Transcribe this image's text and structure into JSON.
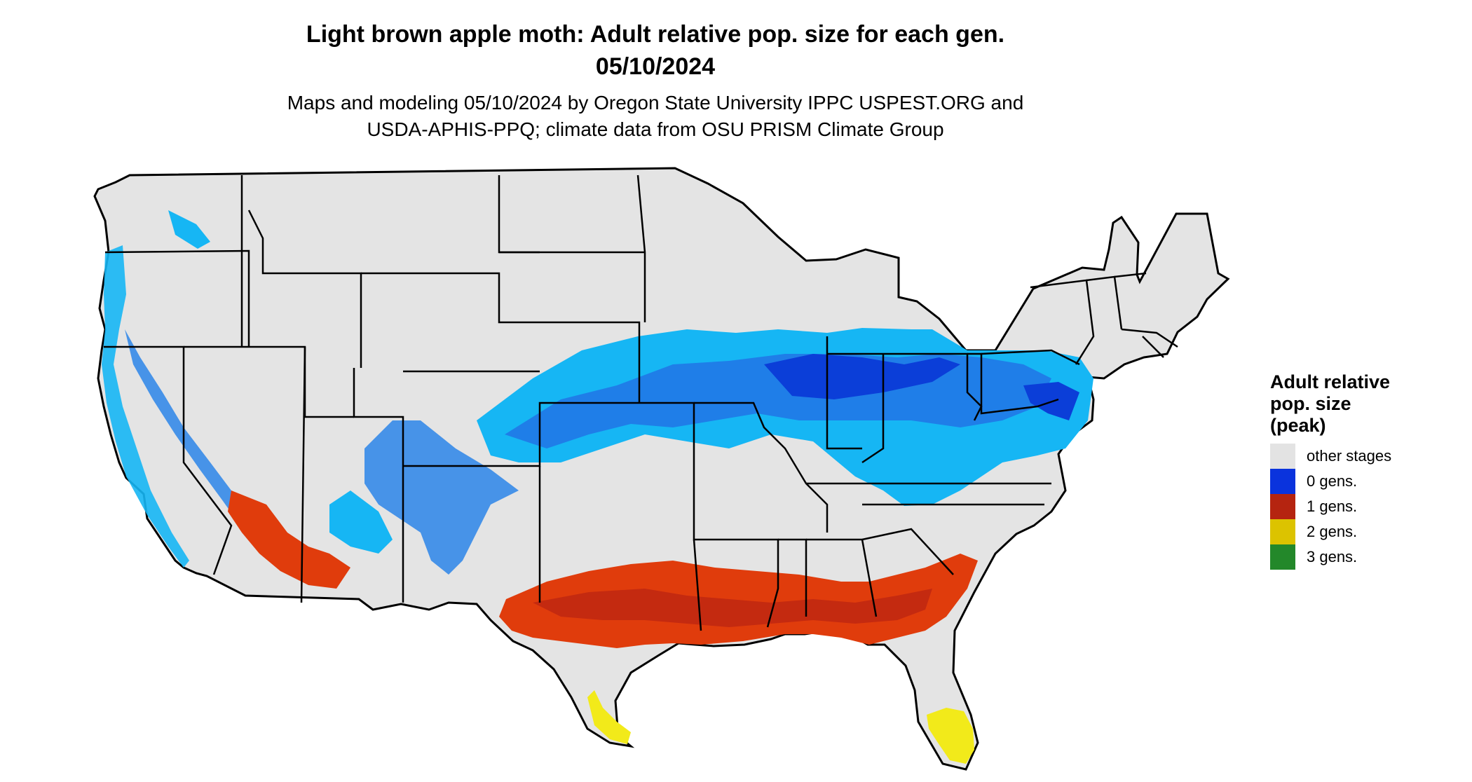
{
  "title_line1": "Light brown apple moth: Adult relative pop. size for each gen.",
  "title_line2": "05/10/2024",
  "subtitle_line1": "Maps and modeling 05/10/2024 by Oregon State University IPPC USPEST.ORG and",
  "subtitle_line2": "USDA-APHIS-PPQ; climate data from OSU PRISM Climate Group",
  "legend": {
    "title_lines": [
      "Adult relative",
      "pop. size",
      "(peak)"
    ],
    "items": [
      {
        "label": "other stages",
        "color": "#e3e3e3"
      },
      {
        "label": "0 gens.",
        "color": "#0a33dd"
      },
      {
        "label": "1 gens.",
        "color": "#b52410"
      },
      {
        "label": "2 gens.",
        "color": "#dcc300"
      },
      {
        "label": "3 gens.",
        "color": "#23882a"
      }
    ]
  },
  "map_colors": {
    "land": "#e4e4e4",
    "light_blue": "#16b6f4",
    "mid_blue": "#1f7ee8",
    "dark_blue": "#0b3ed8",
    "orange_red": "#e03c0c",
    "red": "#c42a10",
    "yellow": "#f2ea1a",
    "border": "#000000"
  }
}
